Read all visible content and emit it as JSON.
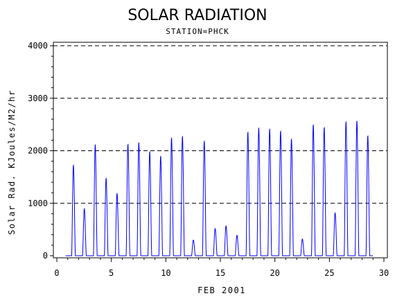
{
  "chart_data": {
    "type": "line",
    "title": "SOLAR RADIATION",
    "subtitle": "STATION=PHCK",
    "xlabel": "FEB 2001",
    "ylabel": "Solar Rad. KJoules/M2/hr",
    "xlim": [
      0,
      30
    ],
    "ylim": [
      0,
      4000
    ],
    "x_ticks": [
      "0",
      "5",
      "10",
      "15",
      "20",
      "25",
      "30"
    ],
    "y_ticks": [
      "0",
      "1000",
      "2000",
      "3000",
      "4000"
    ],
    "gridlines": "horizontal dashed at 1000, 2000, 3000, 4000",
    "line_color": "#0000ff",
    "series": [
      {
        "daily_peaks": [
          {
            "day": 1,
            "peak": 1730
          },
          {
            "day": 2,
            "peak": 900
          },
          {
            "day": 3,
            "peak": 2120
          },
          {
            "day": 4,
            "peak": 1480
          },
          {
            "day": 5,
            "peak": 1190
          },
          {
            "day": 6,
            "peak": 2130
          },
          {
            "day": 7,
            "peak": 2160
          },
          {
            "day": 8,
            "peak": 1990
          },
          {
            "day": 9,
            "peak": 1900
          },
          {
            "day": 10,
            "peak": 2250
          },
          {
            "day": 11,
            "peak": 2280
          },
          {
            "day": 12,
            "peak": 300
          },
          {
            "day": 13,
            "peak": 2190
          },
          {
            "day": 14,
            "peak": 520
          },
          {
            "day": 15,
            "peak": 570
          },
          {
            "day": 16,
            "peak": 390
          },
          {
            "day": 17,
            "peak": 2360
          },
          {
            "day": 18,
            "peak": 2440
          },
          {
            "day": 19,
            "peak": 2420
          },
          {
            "day": 20,
            "peak": 2380
          },
          {
            "day": 21,
            "peak": 2230
          },
          {
            "day": 22,
            "peak": 320
          },
          {
            "day": 23,
            "peak": 2500
          },
          {
            "day": 24,
            "peak": 2450
          },
          {
            "day": 25,
            "peak": 820
          },
          {
            "day": 26,
            "peak": 2560
          },
          {
            "day": 27,
            "peak": 2580
          },
          {
            "day": 28,
            "peak": 2290
          }
        ]
      }
    ]
  }
}
